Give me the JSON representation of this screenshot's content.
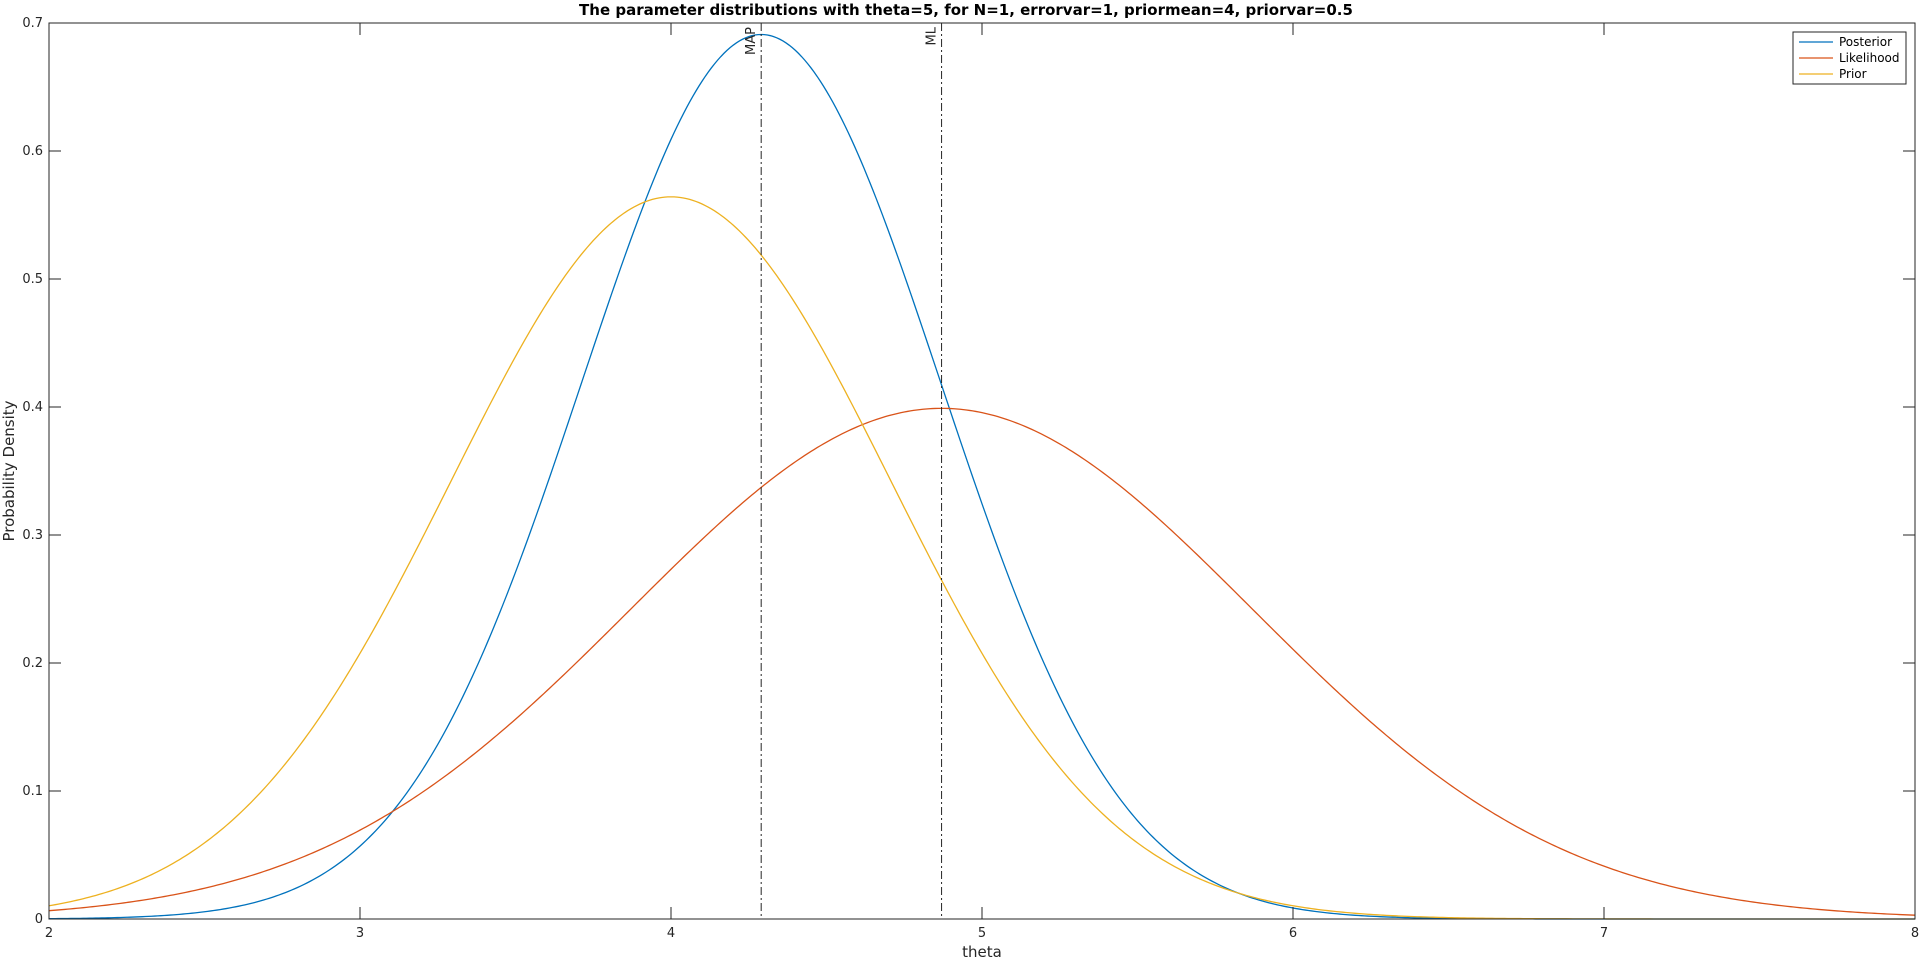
{
  "chart_data": {
    "type": "line",
    "title": "The parameter distributions with theta=5, for N=1, errorvar=1, priormean=4, priorvar=0.5",
    "xlabel": "theta",
    "ylabel": "Probability Density",
    "xlim": [
      2,
      8
    ],
    "ylim": [
      0,
      0.7
    ],
    "xticks": [
      2,
      3,
      4,
      5,
      6,
      7,
      8
    ],
    "xtick_labels": [
      "2",
      "3",
      "4",
      "5",
      "6",
      "7",
      "8"
    ],
    "yticks": [
      0,
      0.1,
      0.2,
      0.3,
      0.4,
      0.5,
      0.6,
      0.7
    ],
    "ytick_labels": [
      "0",
      "0.1",
      "0.2",
      "0.3",
      "0.4",
      "0.5",
      "0.6",
      "0.7"
    ],
    "grid": false,
    "legend": {
      "position": "top-right",
      "entries": [
        "Posterior",
        "Likelihood",
        "Prior"
      ]
    },
    "series": [
      {
        "name": "Posterior",
        "color": "#0072BD",
        "distribution": {
          "mean": 4.29,
          "variance": 0.3333
        }
      },
      {
        "name": "Likelihood",
        "color": "#D95319",
        "distribution": {
          "mean": 4.87,
          "variance": 1.0
        }
      },
      {
        "name": "Prior",
        "color": "#EDB120",
        "distribution": {
          "mean": 4.0,
          "variance": 0.5
        }
      }
    ],
    "annotations": [
      {
        "label": "MAP",
        "x": 4.29,
        "style": "dash-dot"
      },
      {
        "label": "ML",
        "x": 4.87,
        "style": "dash-dot"
      }
    ]
  }
}
